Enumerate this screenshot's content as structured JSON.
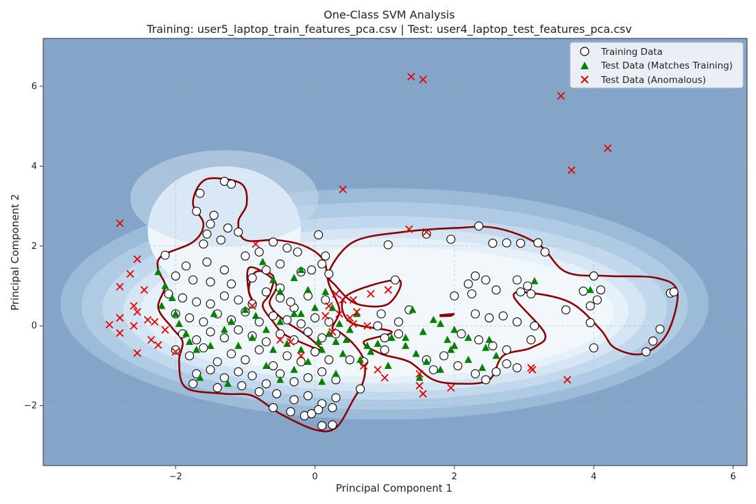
{
  "chart_data": {
    "type": "scatter",
    "title": "One-Class SVM Analysis",
    "subtitle": "Training: user5_laptop_train_features_pca.csv | Test: user4_laptop_test_features_pca.csv",
    "xlabel": "Principal Component 1",
    "ylabel": "Principal Component 2",
    "xlim": [
      -3.9,
      6.2
    ],
    "ylim": [
      -3.5,
      7.2
    ],
    "xticks": [
      -2,
      0,
      2,
      4,
      6
    ],
    "yticks": [
      -2,
      0,
      2,
      4,
      6
    ],
    "xtick_labels": [
      "−2",
      "0",
      "2",
      "4",
      "6"
    ],
    "ytick_labels": [
      "−2",
      "0",
      "2",
      "4",
      "6"
    ],
    "grid": true,
    "legend_position": "top-right",
    "background_color": "#85a5c8",
    "boundary_color": "#8b0000",
    "series": [
      {
        "name": "Training Data",
        "marker": "circle",
        "color": "#ffffff",
        "edge_color": "#000000",
        "points": [
          [
            -1.3,
            3.62
          ],
          [
            -1.2,
            3.55
          ],
          [
            -1.65,
            3.32
          ],
          [
            -1.7,
            2.87
          ],
          [
            -1.45,
            2.77
          ],
          [
            -1.5,
            2.55
          ],
          [
            -1.55,
            2.3
          ],
          [
            -1.25,
            2.45
          ],
          [
            -1.35,
            2.15
          ],
          [
            -1.1,
            2.35
          ],
          [
            -1.6,
            2.05
          ],
          [
            -2.15,
            1.77
          ],
          [
            -1.85,
            1.5
          ],
          [
            -1.55,
            1.6
          ],
          [
            -1.3,
            1.4
          ],
          [
            -1.0,
            1.75
          ],
          [
            -0.8,
            1.85
          ],
          [
            -0.6,
            2.1
          ],
          [
            -0.4,
            1.95
          ],
          [
            -0.25,
            1.85
          ],
          [
            0.05,
            2.28
          ],
          [
            0.15,
            1.75
          ],
          [
            0.1,
            1.55
          ],
          [
            -0.5,
            1.55
          ],
          [
            -0.2,
            1.35
          ],
          [
            -2.0,
            1.25
          ],
          [
            -1.75,
            1.15
          ],
          [
            -1.5,
            1.1
          ],
          [
            -1.2,
            1.05
          ],
          [
            -0.9,
            1.2
          ],
          [
            -0.7,
            1.4
          ],
          [
            -2.1,
            0.8
          ],
          [
            -1.9,
            0.7
          ],
          [
            -1.7,
            0.6
          ],
          [
            -1.5,
            0.55
          ],
          [
            -1.3,
            0.75
          ],
          [
            -1.1,
            0.65
          ],
          [
            -0.9,
            0.55
          ],
          [
            -0.7,
            0.85
          ],
          [
            -0.5,
            0.7
          ],
          [
            -0.3,
            0.45
          ],
          [
            -0.1,
            0.75
          ],
          [
            0.15,
            0.65
          ],
          [
            -2.0,
            0.3
          ],
          [
            -1.8,
            0.2
          ],
          [
            -1.6,
            0.1
          ],
          [
            -1.4,
            0.3
          ],
          [
            -1.2,
            0.15
          ],
          [
            -1.0,
            0.35
          ],
          [
            -0.8,
            0.1
          ],
          [
            -0.6,
            0.25
          ],
          [
            -0.4,
            0.15
          ],
          [
            -0.2,
            0.05
          ],
          [
            0.0,
            0.2
          ],
          [
            0.2,
            0.1
          ],
          [
            -1.9,
            -0.2
          ],
          [
            -1.7,
            -0.35
          ],
          [
            -1.5,
            -0.15
          ],
          [
            -1.3,
            -0.3
          ],
          [
            -1.1,
            -0.1
          ],
          [
            -0.9,
            -0.25
          ],
          [
            -0.7,
            -0.4
          ],
          [
            -0.5,
            -0.2
          ],
          [
            -0.3,
            -0.35
          ],
          [
            -0.1,
            -0.15
          ],
          [
            0.1,
            -0.3
          ],
          [
            0.3,
            -0.2
          ],
          [
            -2.0,
            -0.6
          ],
          [
            -1.8,
            -0.75
          ],
          [
            -1.6,
            -0.55
          ],
          [
            -1.4,
            -0.9
          ],
          [
            -1.2,
            -0.7
          ],
          [
            -1.0,
            -0.85
          ],
          [
            -0.8,
            -0.6
          ],
          [
            -0.6,
            -1.0
          ],
          [
            -0.4,
            -0.75
          ],
          [
            -0.2,
            -0.9
          ],
          [
            0.0,
            -0.65
          ],
          [
            0.2,
            -0.85
          ],
          [
            -1.7,
            -1.2
          ],
          [
            -1.5,
            -1.1
          ],
          [
            -1.3,
            -1.3
          ],
          [
            -1.1,
            -1.15
          ],
          [
            -0.9,
            -1.25
          ],
          [
            -0.7,
            -1.45
          ],
          [
            -0.5,
            -1.2
          ],
          [
            -0.3,
            -1.4
          ],
          [
            -0.1,
            -1.3
          ],
          [
            0.1,
            -1.15
          ],
          [
            0.3,
            -1.35
          ],
          [
            -1.75,
            -1.45
          ],
          [
            -1.4,
            -1.55
          ],
          [
            -1.05,
            -1.5
          ],
          [
            -0.8,
            -1.65
          ],
          [
            -0.55,
            -1.7
          ],
          [
            -0.3,
            -1.85
          ],
          [
            -0.1,
            -1.75
          ],
          [
            0.1,
            -1.95
          ],
          [
            0.3,
            -1.8
          ],
          [
            -0.6,
            -2.05
          ],
          [
            -0.35,
            -2.15
          ],
          [
            -0.15,
            -2.25
          ],
          [
            0.05,
            -2.1
          ],
          [
            0.25,
            -2.05
          ],
          [
            -0.05,
            -2.2
          ],
          [
            0.1,
            -2.5
          ],
          [
            0.25,
            -2.48
          ],
          [
            0.65,
            -1.58
          ],
          [
            0.5,
            -0.85
          ],
          [
            0.7,
            -0.9
          ],
          [
            1.0,
            -0.6
          ],
          [
            1.0,
            -0.3
          ],
          [
            0.9,
            0.0
          ],
          [
            0.95,
            0.3
          ],
          [
            1.2,
            0.1
          ],
          [
            1.15,
            1.15
          ],
          [
            1.05,
            2.03
          ],
          [
            1.35,
            0.4
          ],
          [
            1.2,
            -0.2
          ],
          [
            1.6,
            2.3
          ],
          [
            1.95,
            2.17
          ],
          [
            2.35,
            2.5
          ],
          [
            2.55,
            2.07
          ],
          [
            2.75,
            2.08
          ],
          [
            2.95,
            2.07
          ],
          [
            3.2,
            2.08
          ],
          [
            3.3,
            1.85
          ],
          [
            2.3,
            1.25
          ],
          [
            2.45,
            1.15
          ],
          [
            2.2,
            1.05
          ],
          [
            2.6,
            0.9
          ],
          [
            2.0,
            0.75
          ],
          [
            2.25,
            0.8
          ],
          [
            2.9,
            1.15
          ],
          [
            3.05,
            1.0
          ],
          [
            2.95,
            0.85
          ],
          [
            3.1,
            0.8
          ],
          [
            2.3,
            0.3
          ],
          [
            2.5,
            0.2
          ],
          [
            2.7,
            0.25
          ],
          [
            2.9,
            0.1
          ],
          [
            3.15,
            0.0
          ],
          [
            2.1,
            -0.2
          ],
          [
            2.35,
            -0.35
          ],
          [
            2.55,
            -0.5
          ],
          [
            2.75,
            -0.6
          ],
          [
            3.1,
            -0.35
          ],
          [
            1.6,
            -0.85
          ],
          [
            1.85,
            -0.75
          ],
          [
            2.05,
            -1.0
          ],
          [
            2.3,
            -1.2
          ],
          [
            2.45,
            -1.35
          ],
          [
            2.6,
            -1.15
          ],
          [
            2.75,
            -0.95
          ],
          [
            2.9,
            -1.05
          ],
          [
            1.7,
            -1.1
          ],
          [
            3.6,
            0.4
          ],
          [
            3.85,
            0.87
          ],
          [
            4.0,
            1.25
          ],
          [
            4.1,
            0.9
          ],
          [
            4.05,
            0.65
          ],
          [
            3.95,
            0.5
          ],
          [
            3.95,
            0.08
          ],
          [
            4.0,
            -0.55
          ],
          [
            4.75,
            -0.65
          ],
          [
            4.85,
            -0.38
          ],
          [
            4.95,
            -0.08
          ],
          [
            5.1,
            0.82
          ],
          [
            5.15,
            0.85
          ],
          [
            -0.05,
            1.4
          ],
          [
            0.2,
            1.3
          ],
          [
            -0.5,
            0.95
          ],
          [
            -0.35,
            0.6
          ]
        ]
      },
      {
        "name": "Test Data (Matches Training)",
        "marker": "triangle",
        "color": "#008000",
        "edge_color": "#006000",
        "points": [
          [
            -2.25,
            1.35
          ],
          [
            -2.15,
            1.0
          ],
          [
            -2.05,
            0.7
          ],
          [
            -2.2,
            0.5
          ],
          [
            -2.0,
            0.3
          ],
          [
            -1.95,
            0.05
          ],
          [
            -1.85,
            -0.2
          ],
          [
            -1.8,
            -0.4
          ],
          [
            -1.7,
            -0.6
          ],
          [
            -1.5,
            -0.5
          ],
          [
            -1.65,
            -1.3
          ],
          [
            -1.25,
            -1.45
          ],
          [
            -0.75,
            1.6
          ],
          [
            -0.6,
            1.15
          ],
          [
            -0.5,
            0.85
          ],
          [
            -0.3,
            1.2
          ],
          [
            -0.2,
            1.4
          ],
          [
            -0.1,
            0.9
          ],
          [
            0.15,
            0.85
          ],
          [
            0.0,
            0.45
          ],
          [
            -0.3,
            0.3
          ],
          [
            -0.5,
            0.1
          ],
          [
            -0.7,
            -0.1
          ],
          [
            -0.9,
            -0.3
          ],
          [
            -1.1,
            -0.5
          ],
          [
            -0.6,
            -0.6
          ],
          [
            -0.4,
            -0.45
          ],
          [
            -0.2,
            -0.6
          ],
          [
            0.05,
            -0.4
          ],
          [
            0.2,
            -0.2
          ],
          [
            0.35,
            0.05
          ],
          [
            0.5,
            -0.1
          ],
          [
            0.6,
            0.3
          ],
          [
            0.75,
            -0.5
          ],
          [
            0.9,
            -0.45
          ],
          [
            1.1,
            -0.3
          ],
          [
            1.3,
            -0.5
          ],
          [
            1.45,
            -0.7
          ],
          [
            1.6,
            -0.9
          ],
          [
            1.8,
            -1.1
          ],
          [
            1.5,
            -1.3
          ],
          [
            0.4,
            -0.7
          ],
          [
            0.3,
            -0.4
          ],
          [
            0.1,
            -0.6
          ],
          [
            -0.1,
            -0.9
          ],
          [
            -0.3,
            -1.1
          ],
          [
            -0.5,
            -1.35
          ],
          [
            -0.7,
            -1.0
          ],
          [
            0.1,
            -1.4
          ],
          [
            0.3,
            -1.2
          ],
          [
            1.4,
            0.4
          ],
          [
            1.7,
            0.15
          ],
          [
            1.8,
            0.05
          ],
          [
            2.0,
            -0.1
          ],
          [
            2.2,
            -0.3
          ],
          [
            2.45,
            -0.55
          ],
          [
            2.6,
            -0.75
          ],
          [
            2.4,
            -1.05
          ],
          [
            2.2,
            -0.85
          ],
          [
            2.0,
            -0.5
          ],
          [
            1.9,
            -0.35
          ],
          [
            1.95,
            -0.6
          ],
          [
            1.55,
            -0.15
          ],
          [
            1.3,
            -0.3
          ],
          [
            2.5,
            -0.35
          ],
          [
            3.15,
            1.12
          ],
          [
            3.95,
            0.9
          ],
          [
            -1.2,
            0.1
          ],
          [
            -1.0,
            0.4
          ],
          [
            -1.45,
            0.3
          ],
          [
            -1.3,
            -0.1
          ],
          [
            -0.85,
            0.25
          ],
          [
            -0.2,
            0.3
          ],
          [
            0.25,
            0.45
          ],
          [
            0.45,
            -0.35
          ],
          [
            0.65,
            -0.85
          ],
          [
            0.8,
            -0.65
          ],
          [
            1.05,
            -1.0
          ]
        ]
      },
      {
        "name": "Test Data (Anomalous)",
        "marker": "x",
        "color": "#e00000",
        "edge_color": "#e00000",
        "points": [
          [
            1.38,
            6.24
          ],
          [
            1.55,
            6.17
          ],
          [
            3.53,
            5.76
          ],
          [
            4.2,
            4.45
          ],
          [
            3.68,
            3.9
          ],
          [
            0.4,
            3.42
          ],
          [
            -2.8,
            2.57
          ],
          [
            -2.55,
            1.67
          ],
          [
            -2.65,
            1.3
          ],
          [
            -2.8,
            0.98
          ],
          [
            -2.45,
            0.9
          ],
          [
            -2.6,
            0.5
          ],
          [
            -2.55,
            0.35
          ],
          [
            -2.6,
            0.0
          ],
          [
            -2.8,
            0.2
          ],
          [
            -2.95,
            0.03
          ],
          [
            -2.8,
            -0.18
          ],
          [
            -2.4,
            0.15
          ],
          [
            -2.3,
            0.1
          ],
          [
            -2.35,
            -0.35
          ],
          [
            -2.25,
            -0.48
          ],
          [
            -2.15,
            -0.1
          ],
          [
            -2.55,
            -0.68
          ],
          [
            -2.0,
            -0.65
          ],
          [
            -0.85,
            2.05
          ],
          [
            -0.9,
            0.5
          ],
          [
            -0.35,
            -0.4
          ],
          [
            -0.2,
            -0.75
          ],
          [
            0.2,
            0.5
          ],
          [
            0.3,
            0.8
          ],
          [
            0.35,
            0.3
          ],
          [
            0.55,
            0.65
          ],
          [
            0.4,
            0.65
          ],
          [
            0.6,
            0.35
          ],
          [
            0.75,
            0.0
          ],
          [
            0.5,
            0.2
          ],
          [
            0.8,
            0.8
          ],
          [
            1.05,
            0.9
          ],
          [
            0.55,
            0.05
          ],
          [
            0.7,
            -1.0
          ],
          [
            0.9,
            -1.1
          ],
          [
            1.0,
            -1.3
          ],
          [
            1.35,
            2.42
          ],
          [
            1.6,
            2.35
          ],
          [
            1.5,
            -1.2
          ],
          [
            1.5,
            -1.5
          ],
          [
            1.55,
            -1.7
          ],
          [
            1.95,
            -1.55
          ],
          [
            3.1,
            -1.05
          ],
          [
            3.12,
            -1.1
          ],
          [
            3.62,
            -1.35
          ],
          [
            0.15,
            0.25
          ],
          [
            0.25,
            -0.15
          ],
          [
            -0.5,
            -0.35
          ]
        ]
      }
    ]
  }
}
